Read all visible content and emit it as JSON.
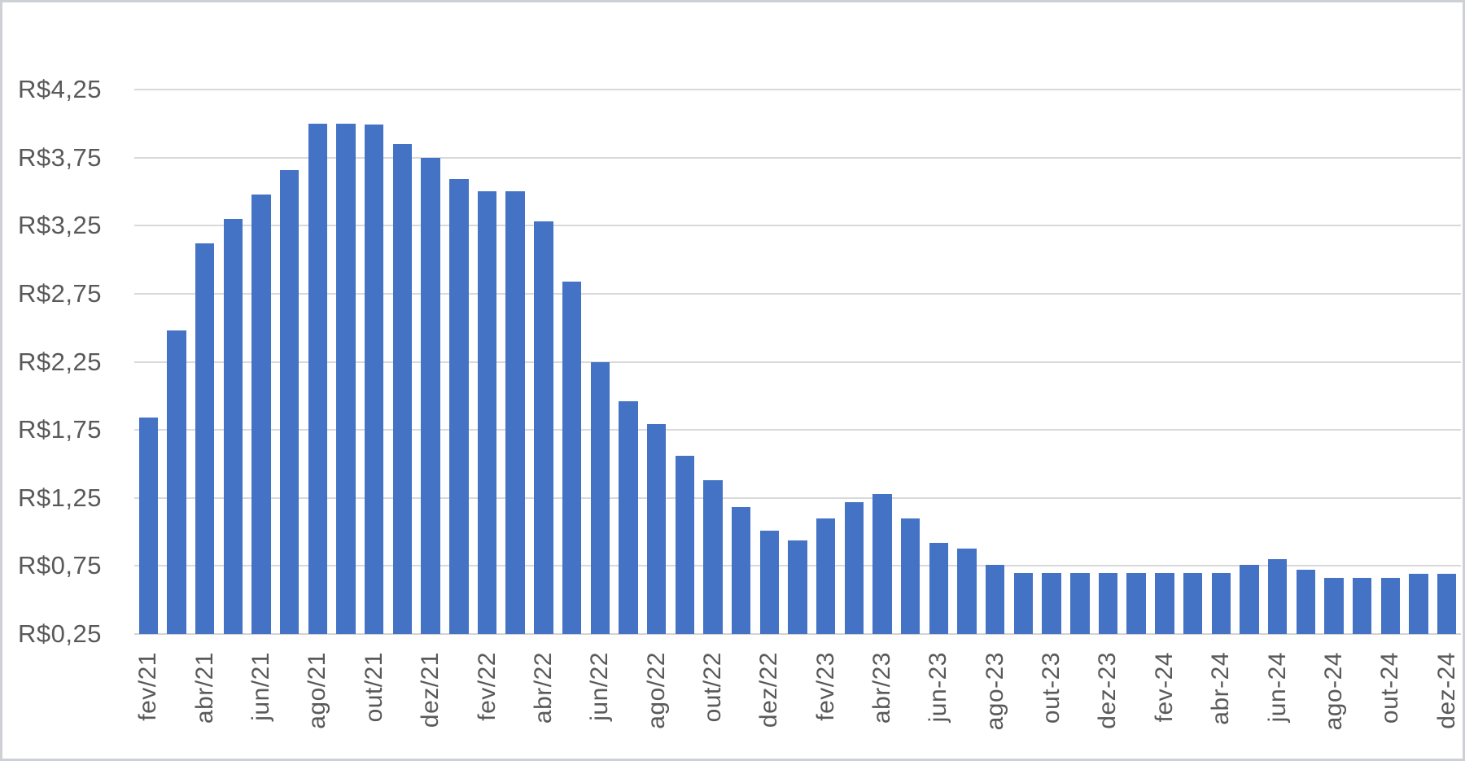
{
  "chart_data": {
    "type": "bar",
    "title": "",
    "xlabel": "",
    "ylabel": "",
    "currency_prefix": "R$",
    "ylim": [
      0.25,
      4.25
    ],
    "y_tick_step": 0.5,
    "y_tick_labels": [
      "R$4,25",
      "R$3,75",
      "R$3,25",
      "R$2,75",
      "R$2,25",
      "R$1,75",
      "R$1,25",
      "R$0,75",
      "R$0,25"
    ],
    "x_tick_labels": [
      "fev/21",
      "abr/21",
      "jun/21",
      "ago/21",
      "out/21",
      "dez/21",
      "fev/22",
      "abr/22",
      "jun/22",
      "ago/22",
      "out/22",
      "dez/22",
      "fev/23",
      "abr/23",
      "jun-23",
      "ago-23",
      "out-23",
      "dez-23",
      "fev-24",
      "abr-24",
      "jun-24",
      "ago-24",
      "out-24",
      "dez-24"
    ],
    "x_tick_every": 2,
    "values": [
      1.84,
      2.48,
      3.12,
      3.3,
      3.48,
      3.66,
      4.0,
      4.0,
      3.99,
      3.85,
      3.75,
      3.59,
      3.5,
      3.5,
      3.28,
      2.84,
      2.25,
      1.96,
      1.79,
      1.56,
      1.38,
      1.18,
      1.01,
      0.94,
      1.1,
      1.22,
      1.28,
      1.1,
      0.92,
      0.88,
      0.76,
      0.7,
      0.7,
      0.7,
      0.7,
      0.7,
      0.7,
      0.7,
      0.7,
      0.76,
      0.8,
      0.72,
      0.66,
      0.66,
      0.66,
      0.69,
      0.69
    ],
    "grid": "horizontal",
    "legend": "none",
    "bar_color": "#4472c4",
    "gridline_color": "#d9d9d9",
    "label_color": "#595959",
    "frame_border_color": "#cdd1d5",
    "background_color": "#ffffff"
  }
}
